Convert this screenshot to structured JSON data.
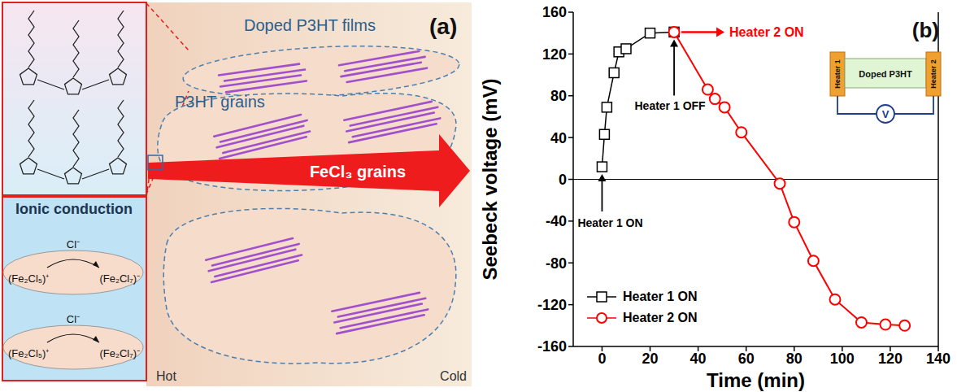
{
  "diagram": {
    "panel_label": "(a)",
    "title": "Doped P3HT films",
    "grains_label": "P3HT grains",
    "arrow_label": "FeCl₃ grains",
    "hot": "Hot",
    "cold": "Cold",
    "ionic": {
      "title": "Ionic conduction",
      "reactions": [
        {
          "reagent": "Cl⁻",
          "from": "(Fe₂Cl₅)⁺",
          "to": "(Fe₂Cl₇)⁻"
        },
        {
          "reagent": "Cl⁻",
          "from": "(Fe₂Cl₅)⁺",
          "to": "(Fe₂Cl₇)⁻"
        }
      ]
    }
  },
  "chart_data": {
    "type": "line",
    "panel_label": "(b)",
    "x_label": "Time (min)",
    "y_label": "Seebeck voltage (mV)",
    "xlim": [
      -12,
      140
    ],
    "xticks": [
      0,
      20,
      40,
      60,
      80,
      100,
      120,
      140
    ],
    "ylim": [
      -160,
      160
    ],
    "yticks": [
      -160,
      -120,
      -80,
      -40,
      0,
      40,
      80,
      120,
      160
    ],
    "reference_line_y": 0,
    "legend": "lower left",
    "series": [
      {
        "name": "Heater 1 ON",
        "color": "#000000",
        "marker": "square",
        "x": [
          0,
          1,
          2,
          5,
          7,
          10,
          20,
          30
        ],
        "values": [
          12,
          43,
          69,
          102,
          122,
          125,
          140,
          141
        ]
      },
      {
        "name": "Heater 2 ON",
        "color": "#ff0000",
        "marker": "circle",
        "x": [
          30,
          44,
          47,
          51,
          58,
          74,
          80,
          88,
          97,
          108,
          118,
          126
        ],
        "values": [
          141,
          86,
          77,
          69,
          45,
          -4,
          -41,
          -78,
          -115,
          -137,
          -139,
          -140
        ]
      }
    ],
    "annotations": [
      {
        "text": "Heater 1 ON",
        "x": 0,
        "y": 12,
        "color": "#000000"
      },
      {
        "text": "Heater 1 OFF",
        "x": 30,
        "y": 141,
        "color": "#000000"
      },
      {
        "text": "Heater 2 ON",
        "x": 30,
        "y": 141,
        "color": "#ff0000"
      }
    ],
    "inset": {
      "heater_left": "Heater 1",
      "sample": "Doped P3HT",
      "heater_right": "Heater 2",
      "meter": "V"
    }
  }
}
